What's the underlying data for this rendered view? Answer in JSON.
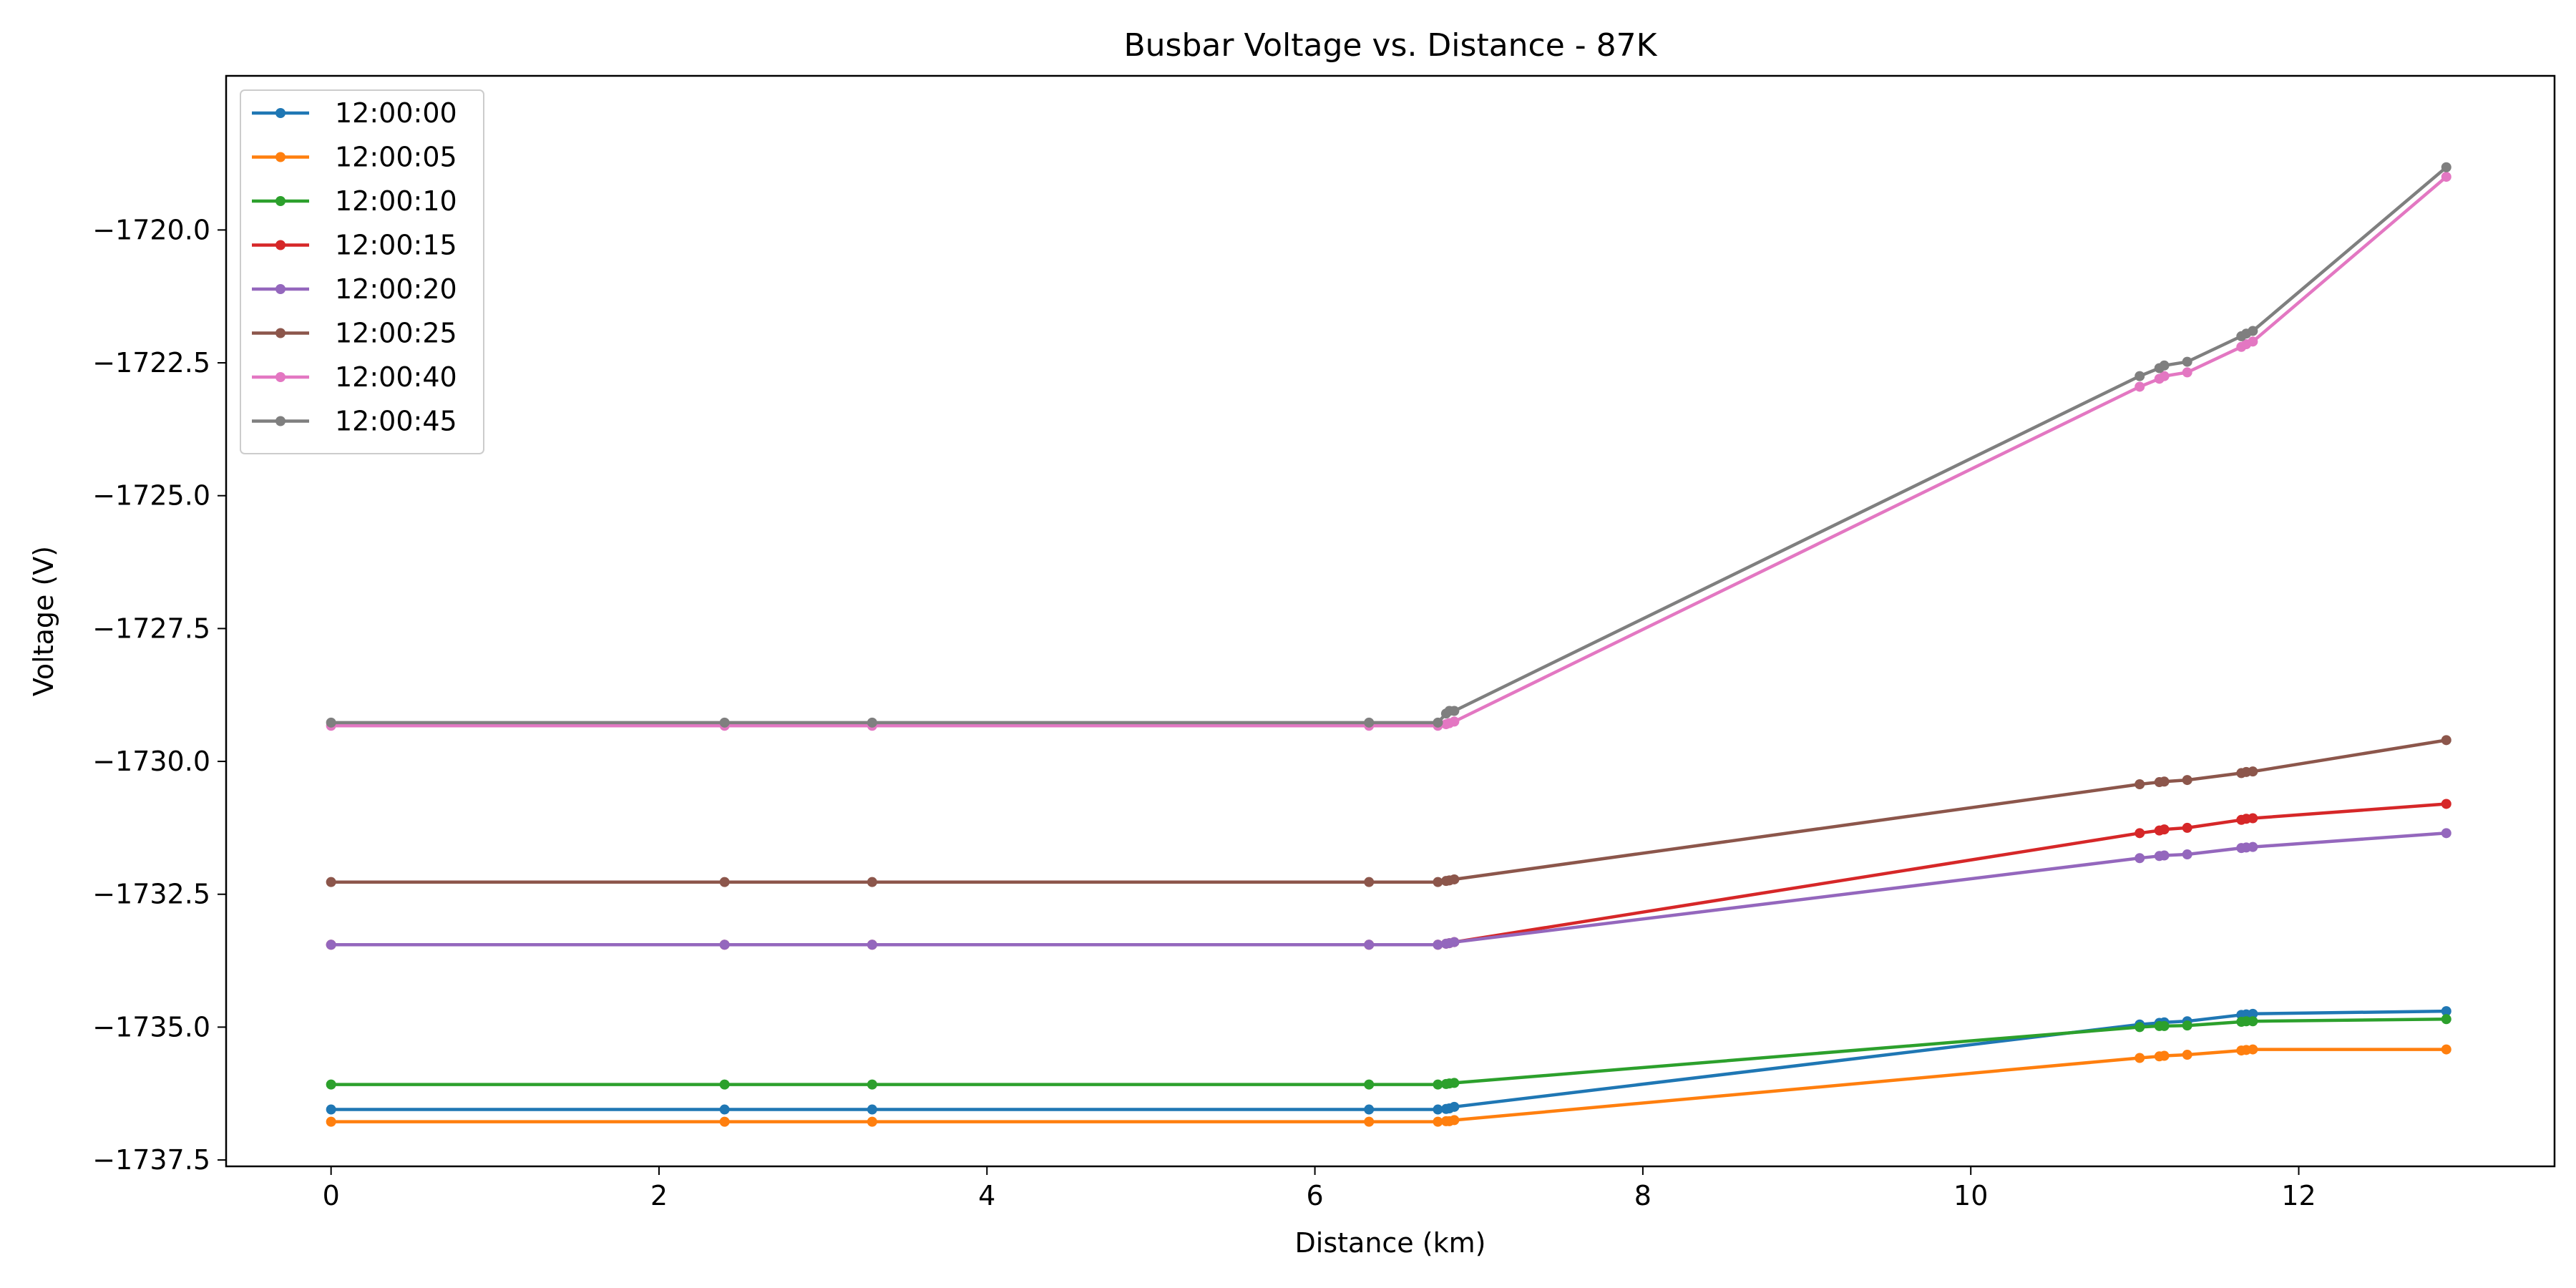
{
  "chart_data": {
    "type": "line",
    "title": "Busbar Voltage vs. Distance - 87K",
    "xlabel": "Distance (km)",
    "ylabel": "Voltage (V)",
    "xlim": [
      -0.64,
      13.56
    ],
    "ylim": [
      -1737.62,
      -1717.1
    ],
    "xticks": [
      0,
      2,
      4,
      6,
      8,
      10,
      12
    ],
    "yticks": [
      -1737.5,
      -1735.0,
      -1732.5,
      -1730.0,
      -1727.5,
      -1725.0,
      -1722.5,
      -1720.0
    ],
    "ytick_labels": [
      "−1737.5",
      "−1735.0",
      "−1732.5",
      "−1730.0",
      "−1727.5",
      "−1725.0",
      "−1722.5",
      "−1720.0"
    ],
    "grid": false,
    "legend_position": "upper-left",
    "x": [
      0,
      2.4,
      3.3,
      6.33,
      6.75,
      6.8,
      6.82,
      6.85,
      11.03,
      11.15,
      11.18,
      11.32,
      11.65,
      11.68,
      11.72,
      12.9
    ],
    "series": [
      {
        "name": "12:00:00",
        "color": "#1f77b4",
        "values": [
          -1736.55,
          -1736.55,
          -1736.55,
          -1736.55,
          -1736.55,
          -1736.54,
          -1736.53,
          -1736.5,
          -1734.95,
          -1734.92,
          -1734.91,
          -1734.89,
          -1734.77,
          -1734.76,
          -1734.75,
          -1734.7
        ]
      },
      {
        "name": "12:00:05",
        "color": "#ff7f0e",
        "values": [
          -1736.78,
          -1736.78,
          -1736.78,
          -1736.78,
          -1736.78,
          -1736.77,
          -1736.77,
          -1736.75,
          -1735.58,
          -1735.55,
          -1735.54,
          -1735.52,
          -1735.44,
          -1735.43,
          -1735.42,
          -1735.42
        ]
      },
      {
        "name": "12:00:10",
        "color": "#2ca02c",
        "values": [
          -1736.08,
          -1736.08,
          -1736.08,
          -1736.08,
          -1736.08,
          -1736.07,
          -1736.06,
          -1736.05,
          -1735.0,
          -1734.98,
          -1734.98,
          -1734.97,
          -1734.9,
          -1734.89,
          -1734.89,
          -1734.85
        ]
      },
      {
        "name": "12:00:15",
        "color": "#d62728",
        "values": [
          -1733.45,
          -1733.45,
          -1733.45,
          -1733.45,
          -1733.45,
          -1733.43,
          -1733.42,
          -1733.4,
          -1731.35,
          -1731.3,
          -1731.28,
          -1731.25,
          -1731.1,
          -1731.08,
          -1731.07,
          -1730.8
        ]
      },
      {
        "name": "12:00:20",
        "color": "#9467bd",
        "values": [
          -1733.45,
          -1733.45,
          -1733.45,
          -1733.45,
          -1733.45,
          -1733.43,
          -1733.42,
          -1733.4,
          -1731.82,
          -1731.78,
          -1731.77,
          -1731.75,
          -1731.63,
          -1731.62,
          -1731.61,
          -1731.35
        ]
      },
      {
        "name": "12:00:25",
        "color": "#8c564b",
        "values": [
          -1732.27,
          -1732.27,
          -1732.27,
          -1732.27,
          -1732.27,
          -1732.25,
          -1732.24,
          -1732.22,
          -1730.43,
          -1730.39,
          -1730.38,
          -1730.35,
          -1730.22,
          -1730.2,
          -1730.19,
          -1729.6
        ]
      },
      {
        "name": "12:00:40",
        "color": "#e377c2",
        "values": [
          -1729.33,
          -1729.33,
          -1729.33,
          -1729.33,
          -1729.33,
          -1729.3,
          -1729.28,
          -1729.25,
          -1722.95,
          -1722.8,
          -1722.75,
          -1722.68,
          -1722.2,
          -1722.15,
          -1722.1,
          -1719.0
        ]
      },
      {
        "name": "12:00:45",
        "color": "#7f7f7f",
        "values": [
          -1729.27,
          -1729.27,
          -1729.27,
          -1729.27,
          -1729.27,
          -1729.1,
          -1729.05,
          -1729.05,
          -1722.75,
          -1722.6,
          -1722.55,
          -1722.48,
          -1722.0,
          -1721.95,
          -1721.9,
          -1718.82
        ]
      }
    ]
  }
}
